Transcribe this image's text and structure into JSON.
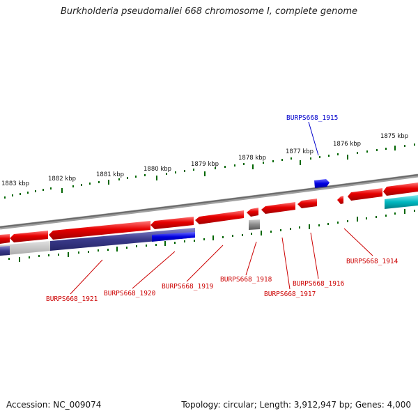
{
  "title": "Burkholderia pseudomallei 668 chromosome I, complete genome",
  "footer": {
    "accession": "Accession: NC_009074",
    "stats": "Topology: circular; Length: 3,912,947 bp; Genes: 4,000"
  },
  "scale": {
    "unit_suffix": "kbp",
    "labels": [
      "1883 kbp",
      "1882 kbp",
      "1881 kbp",
      "1880 kbp",
      "1879 kbp",
      "1878 kbp",
      "1877 kbp",
      "1876 kbp",
      "1875 kbp"
    ]
  },
  "genes": [
    {
      "id": "BURPS668_1915",
      "color": "#0000cc"
    },
    {
      "id": "BURPS668_1914",
      "color": "#cc0000"
    },
    {
      "id": "BURPS668_1916",
      "color": "#cc0000"
    },
    {
      "id": "BURPS668_1917",
      "color": "#cc0000"
    },
    {
      "id": "BURPS668_1918",
      "color": "#cc0000"
    },
    {
      "id": "BURPS668_1919",
      "color": "#cc0000"
    },
    {
      "id": "BURPS668_1920",
      "color": "#cc0000"
    },
    {
      "id": "BURPS668_1921",
      "color": "#cc0000"
    }
  ],
  "colors": {
    "cds_forward": "#e00000",
    "cds_blue": "#0000e0",
    "backbone": "#808080",
    "tick": "#006600",
    "gene_product_dark": "#3a3a8a",
    "gene_product_cyan": "#00b8c0"
  }
}
